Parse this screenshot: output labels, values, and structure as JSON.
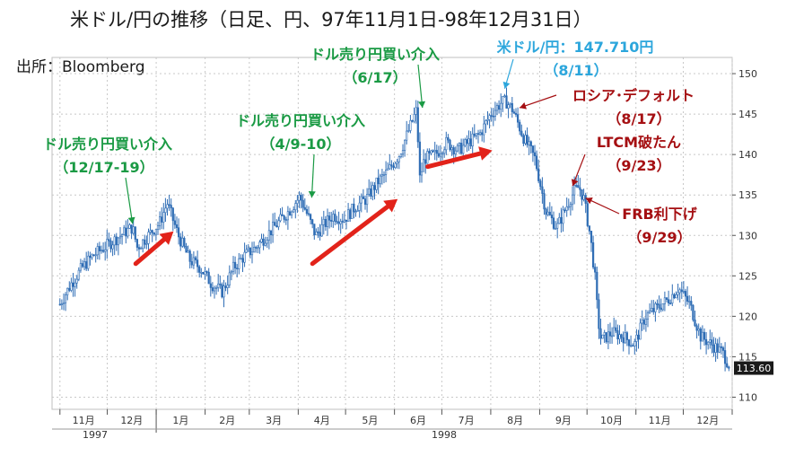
{
  "title": "米ドル/円の推移（日足、円、97年11月1日-98年12月31日）",
  "source": "出所：Bloomberg",
  "chart_data": {
    "type": "candlestick",
    "title": "米ドル/円の推移（日足、円、97年11月1日-98年12月31日）",
    "ylim": [
      108.5,
      152
    ],
    "y_ticks": [
      110,
      115,
      120,
      125,
      130,
      135,
      140,
      145,
      150
    ],
    "y_axis_side": "right",
    "grid": true,
    "x_months": [
      "11月",
      "12月",
      "1月",
      "2月",
      "3月",
      "4月",
      "5月",
      "6月",
      "7月",
      "8月",
      "9月",
      "10月",
      "11月",
      "12月"
    ],
    "x_years": [
      "1997",
      "1998"
    ],
    "last_price_label": "113.60",
    "last_price": 113.6,
    "series": [
      {
        "dates": [
          "1997-11-01",
          "1997-11-08",
          "1997-11-15",
          "1997-11-22",
          "1997-11-29",
          "1997-12-06",
          "1997-12-13",
          "1997-12-17",
          "1997-12-20",
          "1997-12-27",
          "1998-01-03",
          "1998-01-08",
          "1998-01-15",
          "1998-01-22",
          "1998-01-29",
          "1998-02-05",
          "1998-02-12",
          "1998-02-19",
          "1998-02-26",
          "1998-03-05",
          "1998-03-12",
          "1998-03-19",
          "1998-03-26",
          "1998-04-02",
          "1998-04-09",
          "1998-04-12",
          "1998-04-16",
          "1998-04-23",
          "1998-04-30",
          "1998-05-07",
          "1998-05-14",
          "1998-05-21",
          "1998-05-28",
          "1998-06-04",
          "1998-06-11",
          "1998-06-15",
          "1998-06-17",
          "1998-06-20",
          "1998-06-27",
          "1998-07-04",
          "1998-07-11",
          "1998-07-18",
          "1998-07-25",
          "1998-08-01",
          "1998-08-08",
          "1998-08-11",
          "1998-08-15",
          "1998-08-17",
          "1998-08-22",
          "1998-08-29",
          "1998-09-05",
          "1998-09-12",
          "1998-09-19",
          "1998-09-23",
          "1998-09-26",
          "1998-09-29",
          "1998-10-03",
          "1998-10-06",
          "1998-10-08",
          "1998-10-10",
          "1998-10-17",
          "1998-10-24",
          "1998-10-31",
          "1998-11-07",
          "1998-11-14",
          "1998-11-21",
          "1998-11-28",
          "1998-12-05",
          "1998-12-12",
          "1998-12-19",
          "1998-12-26",
          "1998-12-31"
        ],
        "values": [
          121.5,
          124.0,
          126.0,
          127.5,
          128.5,
          129.5,
          130.5,
          131.0,
          128.5,
          130.0,
          131.5,
          134.0,
          130.0,
          127.0,
          126.0,
          124.0,
          123.0,
          126.0,
          127.5,
          128.5,
          130.0,
          131.5,
          133.0,
          134.8,
          131.5,
          130.0,
          131.0,
          132.5,
          132.0,
          133.5,
          134.5,
          136.5,
          138.0,
          140.0,
          143.5,
          145.5,
          137.0,
          139.5,
          140.0,
          141.5,
          140.5,
          141.5,
          142.5,
          145.0,
          146.5,
          146.5,
          145.5,
          144.5,
          142.0,
          139.5,
          133.0,
          131.0,
          134.0,
          135.5,
          136.0,
          134.5,
          130.0,
          125.0,
          119.5,
          117.0,
          118.0,
          117.5,
          116.5,
          120.0,
          121.0,
          122.0,
          123.5,
          121.5,
          117.5,
          116.5,
          115.5,
          113.6
        ]
      }
    ],
    "annotations": [
      {
        "id": "intervention_dec",
        "text": "ドル売り円買い介入",
        "sub": "（12/17-19）",
        "color": "#1a9a44",
        "date": "1997-12-17",
        "value": 131.0
      },
      {
        "id": "intervention_apr",
        "text": "ドル売り円買い介入",
        "sub": "（4/9-10）",
        "color": "#1a9a44",
        "date": "1998-04-09",
        "value": 134.0
      },
      {
        "id": "intervention_jun",
        "text": "ドル売り円買い介入",
        "sub": "（6/17）",
        "color": "#1a9a44",
        "date": "1998-06-17",
        "value": 146.0
      },
      {
        "id": "usdjpy_high",
        "text": "米ドル/円：147.710円",
        "sub": "（8/11）",
        "color": "#2ca6dc",
        "date": "1998-08-11",
        "value": 147.7
      },
      {
        "id": "russia_default",
        "text": "ロシア･デフォルト",
        "sub": "（8/17）",
        "color": "#a50f12",
        "date": "1998-08-17",
        "value": 146.0
      },
      {
        "id": "ltcm",
        "text": "LTCM破たん",
        "sub": "（9/23）",
        "color": "#a50f12",
        "date": "1998-09-23",
        "value": 136.0
      },
      {
        "id": "frb_cut",
        "text": "FRB利下げ",
        "sub": "（9/29）",
        "color": "#a50f12",
        "date": "1998-09-29",
        "value": 134.5
      }
    ]
  }
}
